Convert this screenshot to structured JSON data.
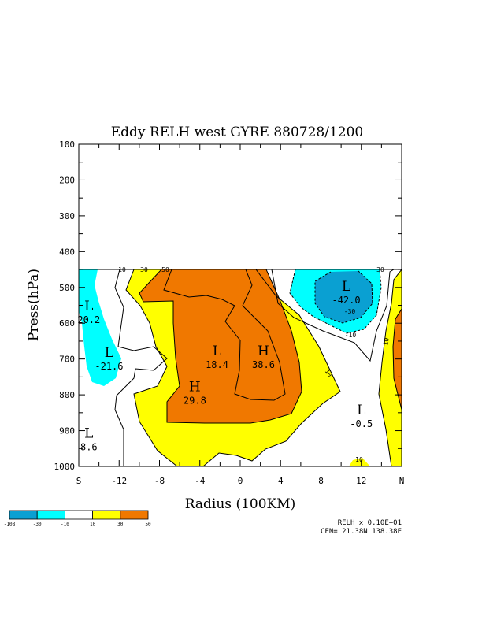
{
  "chart_data": {
    "type": "contour",
    "title": "Eddy RELH west GYRE 880728/1200",
    "xlabel": "Radius (100KM)",
    "ylabel": "Press(hPa)",
    "x_ticks": [
      "S",
      "-12",
      "-8",
      "-4",
      "0",
      "4",
      "8",
      "12",
      "N"
    ],
    "y_ticks": [
      "100",
      "200",
      "300",
      "400",
      "500",
      "600",
      "700",
      "800",
      "900",
      "1000"
    ],
    "xlim": [
      -16,
      16
    ],
    "ylim": [
      1000,
      100
    ],
    "data_top_pressure": 450,
    "contour_levels": [
      -30,
      -10,
      10,
      30,
      50
    ],
    "contour_line_labels": [
      "10",
      "30",
      "50",
      "30",
      "-30",
      "-10",
      "10",
      "10",
      "10"
    ],
    "extrema": [
      {
        "type": "L",
        "value": "20.2",
        "x": -15,
        "p": 580
      },
      {
        "type": "L",
        "value": "-21.6",
        "x": -13,
        "p": 710
      },
      {
        "type": "L",
        "value": "8.6",
        "x": -15,
        "p": 935
      },
      {
        "type": "L",
        "value": "18.4",
        "x": -2.3,
        "p": 705
      },
      {
        "type": "H",
        "value": "38.6",
        "x": 2.3,
        "p": 705
      },
      {
        "type": "H",
        "value": "29.8",
        "x": -4.5,
        "p": 805
      },
      {
        "type": "L",
        "value": "-42.0",
        "x": 10.5,
        "p": 525
      },
      {
        "type": "L",
        "value": "-0.5",
        "x": 12,
        "p": 870
      }
    ],
    "legend": {
      "boundaries": [
        "-108",
        "-30",
        "-10",
        "10",
        "30",
        "50"
      ],
      "colors": [
        "#0aa0d2",
        "#00ffff",
        "#ffffff",
        "#ffff00",
        "#f07800"
      ]
    },
    "footnote": {
      "line1": "RELH x  0.10E+01",
      "line2": "CEN= 21.38N  138.38E"
    }
  }
}
